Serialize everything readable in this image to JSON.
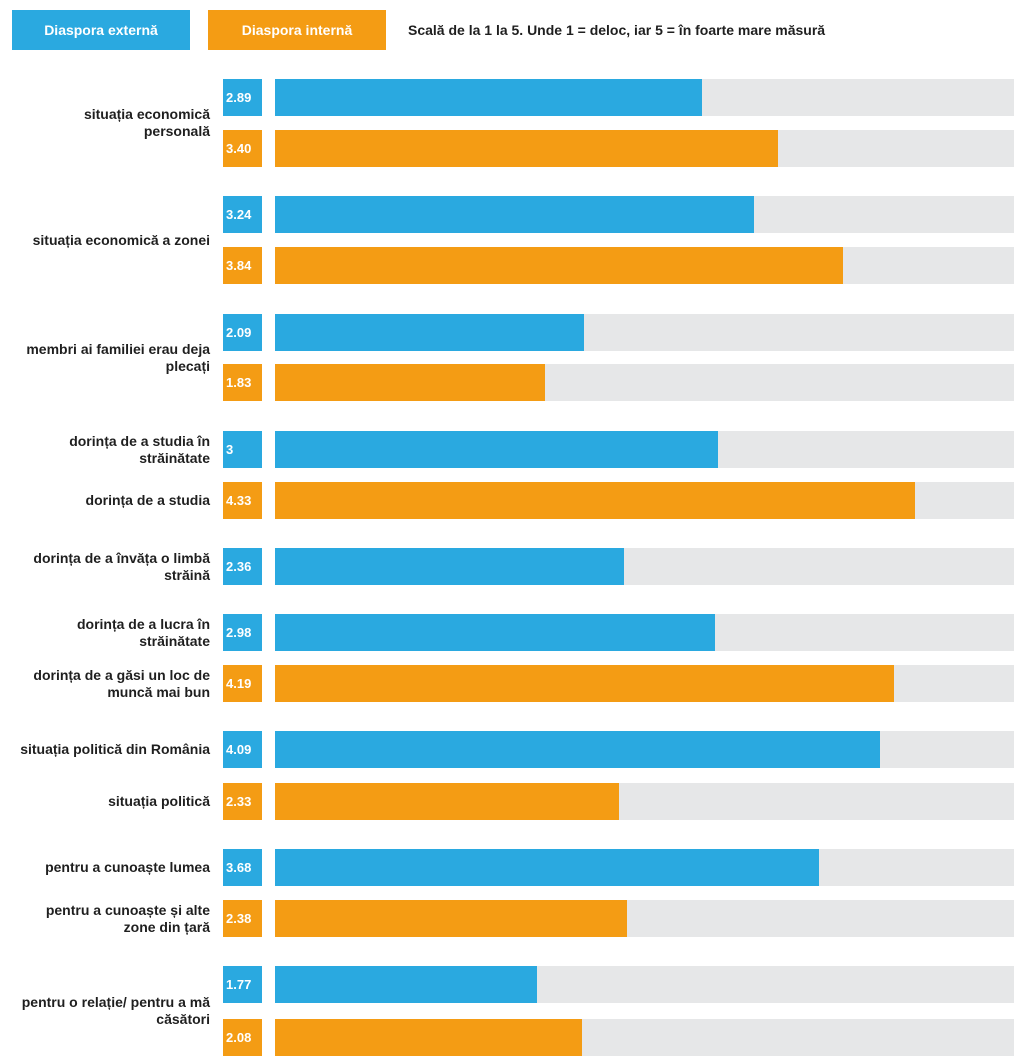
{
  "legend": {
    "external_label": "Diaspora externă",
    "internal_label": "Diaspora internă",
    "scale_note": "Scală de la 1 la 5. Unde 1 = deloc, iar 5 = în foarte mare măsură"
  },
  "colors": {
    "external": "#2aa9e0",
    "internal": "#f49c14",
    "track": "#e6e7e8"
  },
  "chart_data": {
    "type": "bar",
    "orientation": "horizontal",
    "xlim": [
      0,
      5
    ],
    "grid": false,
    "legend_placement": "top-left",
    "groups": [
      {
        "label": "situația economică personală",
        "bars": [
          {
            "series": "external",
            "value": 2.89,
            "display": "2.89"
          },
          {
            "series": "internal",
            "value": 3.4,
            "display": "3.40"
          }
        ]
      },
      {
        "label": "situația economică a zonei",
        "bars": [
          {
            "series": "external",
            "value": 3.24,
            "display": "3.24"
          },
          {
            "series": "internal",
            "value": 3.84,
            "display": "3.84"
          }
        ]
      },
      {
        "label": "membri ai familiei erau deja plecați",
        "bars": [
          {
            "series": "external",
            "value": 2.09,
            "display": "2.09"
          },
          {
            "series": "internal",
            "value": 1.83,
            "display": "1.83"
          }
        ]
      },
      {
        "label": "dorința de a studia în străinătate",
        "bars": [
          {
            "series": "external",
            "value": 3,
            "display": "3"
          }
        ]
      },
      {
        "label": "dorința de a studia",
        "bars": [
          {
            "series": "internal",
            "value": 4.33,
            "display": "4.33"
          }
        ]
      },
      {
        "label": "dorința de a învăța o limbă străină",
        "bars": [
          {
            "series": "external",
            "value": 2.36,
            "display": "2.36"
          }
        ]
      },
      {
        "label": "dorința de a lucra în străinătate",
        "bars": [
          {
            "series": "external",
            "value": 2.98,
            "display": "2.98"
          }
        ]
      },
      {
        "label": "dorința de a găsi un loc de muncă mai bun",
        "bars": [
          {
            "series": "internal",
            "value": 4.19,
            "display": "4.19"
          }
        ]
      },
      {
        "label": "situația politică din România",
        "bars": [
          {
            "series": "external",
            "value": 4.09,
            "display": "4.09"
          }
        ]
      },
      {
        "label": "situația politică",
        "bars": [
          {
            "series": "internal",
            "value": 2.33,
            "display": "2.33"
          }
        ]
      },
      {
        "label": "pentru a cunoaște lumea",
        "bars": [
          {
            "series": "external",
            "value": 3.68,
            "display": "3.68"
          }
        ]
      },
      {
        "label": "pentru a cunoaște și alte zone din țară",
        "bars": [
          {
            "series": "internal",
            "value": 2.38,
            "display": "2.38"
          }
        ]
      },
      {
        "label": "pentru o relație/ pentru a mă căsători",
        "bars": [
          {
            "series": "external",
            "value": 1.77,
            "display": "1.77"
          },
          {
            "series": "internal",
            "value": 2.08,
            "display": "2.08"
          }
        ]
      }
    ]
  }
}
